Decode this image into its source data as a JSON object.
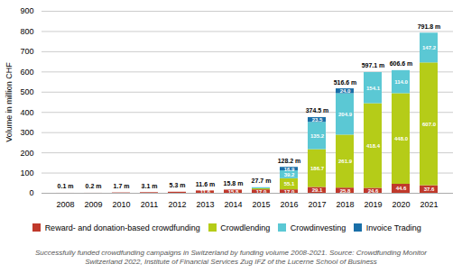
{
  "chart_data": {
    "type": "bar",
    "stacked": true,
    "data_labels": true,
    "grid": true,
    "categories": [
      "2008",
      "2009",
      "2010",
      "2011",
      "2012",
      "2013",
      "2014",
      "2015",
      "2016",
      "2017",
      "2018",
      "2019",
      "2020",
      "2021"
    ],
    "series": [
      {
        "name": "Reward- and donation-based crowdfunding",
        "color": "#c0392b",
        "values": [
          0.1,
          0.2,
          1.7,
          3.1,
          5.3,
          11.6,
          15.8,
          17.0,
          17.0,
          29.1,
          25.8,
          24.6,
          44.6,
          37.6
        ],
        "value_labels": [
          null,
          null,
          null,
          null,
          null,
          "11.6",
          "15.8",
          "17.0",
          "17.0",
          "29.1",
          "25.8",
          "24.6",
          "44.6",
          "37.6"
        ]
      },
      {
        "name": "Crowdlending",
        "color": "#b5cc18",
        "values": [
          0.0,
          0.0,
          0.0,
          0.0,
          0.0,
          0.0,
          0.0,
          5.5,
          55.1,
          186.7,
          261.9,
          418.4,
          448.0,
          607.0
        ],
        "value_labels": [
          null,
          null,
          null,
          null,
          null,
          null,
          null,
          null,
          "55.1",
          "186.7",
          "261.9",
          "418.4",
          "448.0",
          "607.0"
        ]
      },
      {
        "name": "Crowdinvesting",
        "color": "#5bc8d4",
        "values": [
          0.0,
          0.0,
          0.0,
          0.0,
          0.0,
          0.0,
          0.0,
          5.2,
          39.2,
          135.2,
          204.9,
          154.1,
          114.0,
          147.2
        ],
        "value_labels": [
          null,
          null,
          null,
          null,
          null,
          null,
          null,
          null,
          "39.2",
          "135.2",
          "204.9",
          "154.1",
          "114.0",
          "147.2"
        ]
      },
      {
        "name": "Invoice Trading",
        "color": "#1a6fa8",
        "values": [
          0.0,
          0.0,
          0.0,
          0.0,
          0.0,
          0.0,
          0.0,
          0.0,
          16.9,
          23.5,
          24.0,
          0.0,
          0.0,
          0.0
        ],
        "value_labels": [
          null,
          null,
          null,
          null,
          null,
          null,
          null,
          null,
          "16.9",
          "23.5",
          "24.0",
          null,
          null,
          null
        ]
      }
    ],
    "totals": [
      0.1,
      0.2,
      1.7,
      3.1,
      5.3,
      11.6,
      15.8,
      27.7,
      128.2,
      374.5,
      516.6,
      597.1,
      606.6,
      791.8
    ],
    "total_labels": [
      "0.1 m",
      "0.2 m",
      "1.7 m",
      "3.1 m",
      "5.3 m",
      "11.6 m",
      "15.8 m",
      "27.7 m",
      "128.2 m",
      "374.5 m",
      "516.6 m",
      "597.1 m",
      "606.6 m",
      "791.8 m"
    ],
    "ylabel": "Volume in million CHF",
    "ylim": [
      0,
      900
    ],
    "yticks": [
      0,
      100,
      200,
      300,
      400,
      500,
      600,
      700,
      800,
      900
    ],
    "caption": "Successfully funded crowdfunding campaigns in Switzerland by funding volume 2008-2021. Source: Crowdfunding Monitor\nSwitzerland 2022, Institute of Financial Services Zug IFZ of the Lucerne School of Business"
  }
}
